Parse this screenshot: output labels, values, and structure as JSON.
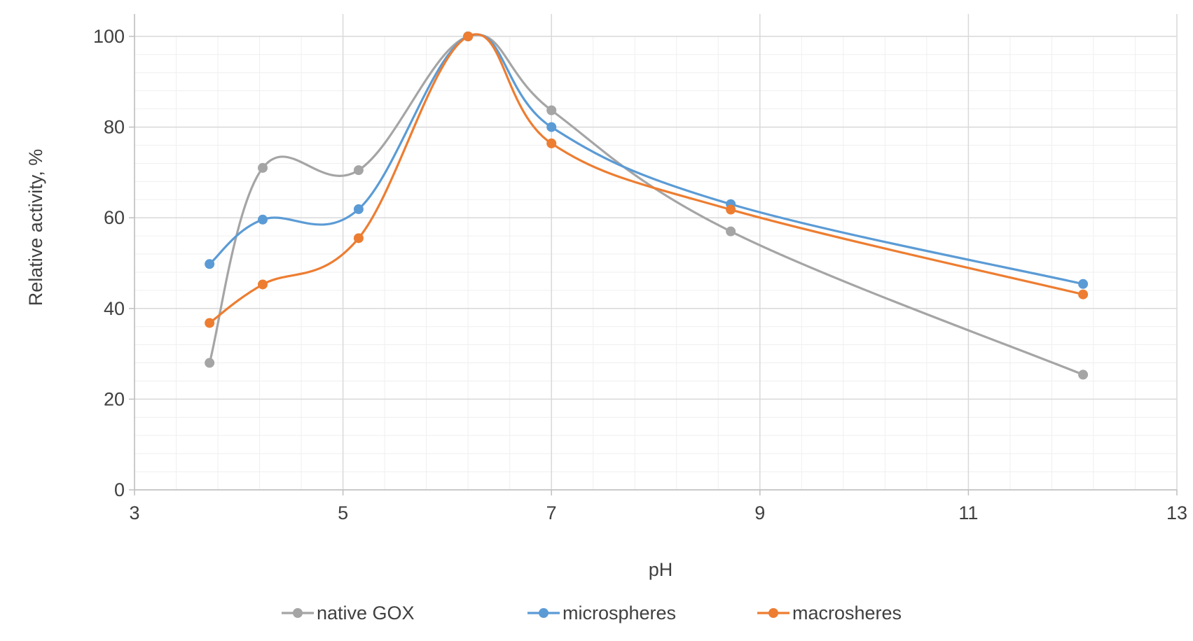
{
  "chart_data": {
    "type": "scatter",
    "title": "",
    "xlabel": "pH",
    "ylabel": "Relative activity, %",
    "xlim": [
      3,
      13
    ],
    "ylim": [
      0,
      100
    ],
    "x_ticks": [
      "3",
      "5",
      "7",
      "9",
      "11",
      "13"
    ],
    "y_ticks": [
      "0",
      "20",
      "40",
      "60",
      "80",
      "100"
    ],
    "grid": true,
    "smooth_lines": true,
    "legend_position": "bottom",
    "series": [
      {
        "name": "native GOX",
        "color": "#a5a5a5",
        "x": [
          3.72,
          4.23,
          5.15,
          6.2,
          7.0,
          8.72,
          12.1
        ],
        "y": [
          28.0,
          71.0,
          70.5,
          100,
          83.7,
          57.0,
          25.4
        ]
      },
      {
        "name": "microspheres",
        "color": "#5b9bd5",
        "x": [
          3.72,
          4.23,
          5.15,
          6.2,
          7.0,
          8.72,
          12.1
        ],
        "y": [
          49.8,
          59.6,
          61.9,
          100,
          80.0,
          63.0,
          45.4
        ]
      },
      {
        "name": "macrosheres",
        "color": "#ed7d31",
        "x": [
          3.72,
          4.23,
          5.15,
          6.2,
          7.0,
          8.72,
          12.1
        ],
        "y": [
          36.8,
          45.3,
          55.5,
          100,
          76.4,
          61.8,
          43.1
        ]
      }
    ]
  }
}
